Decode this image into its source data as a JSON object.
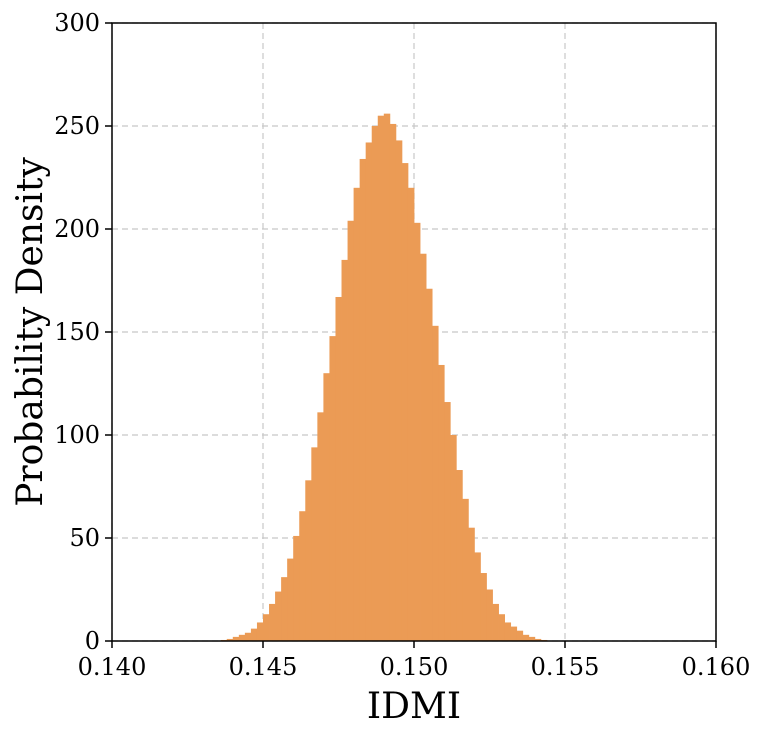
{
  "chart_data": {
    "type": "bar",
    "title": "",
    "xlabel": "IDMI",
    "ylabel": "Probability Density",
    "xlim": [
      0.14,
      0.16
    ],
    "ylim": [
      0,
      300
    ],
    "grid": true,
    "xticks": [
      "0.140",
      "0.145",
      "0.150",
      "0.155",
      "0.160"
    ],
    "yticks": [
      "0",
      "50",
      "100",
      "150",
      "200",
      "250",
      "300"
    ],
    "color": "#eb9b55",
    "bin_width": 0.0002,
    "bins": [
      {
        "x": 0.1437,
        "y": 0.5
      },
      {
        "x": 0.1439,
        "y": 1
      },
      {
        "x": 0.1441,
        "y": 2
      },
      {
        "x": 0.1443,
        "y": 3
      },
      {
        "x": 0.1445,
        "y": 4
      },
      {
        "x": 0.1447,
        "y": 6
      },
      {
        "x": 0.1449,
        "y": 9
      },
      {
        "x": 0.1451,
        "y": 13
      },
      {
        "x": 0.1453,
        "y": 18
      },
      {
        "x": 0.1455,
        "y": 24
      },
      {
        "x": 0.1457,
        "y": 31
      },
      {
        "x": 0.1459,
        "y": 40
      },
      {
        "x": 0.1461,
        "y": 51
      },
      {
        "x": 0.1463,
        "y": 63
      },
      {
        "x": 0.1465,
        "y": 78
      },
      {
        "x": 0.1467,
        "y": 94
      },
      {
        "x": 0.1469,
        "y": 111
      },
      {
        "x": 0.1471,
        "y": 130
      },
      {
        "x": 0.1473,
        "y": 148
      },
      {
        "x": 0.1475,
        "y": 167
      },
      {
        "x": 0.1477,
        "y": 185
      },
      {
        "x": 0.1479,
        "y": 204
      },
      {
        "x": 0.1481,
        "y": 220
      },
      {
        "x": 0.1483,
        "y": 234
      },
      {
        "x": 0.1485,
        "y": 242
      },
      {
        "x": 0.1487,
        "y": 250
      },
      {
        "x": 0.1489,
        "y": 255
      },
      {
        "x": 0.1491,
        "y": 256
      },
      {
        "x": 0.1493,
        "y": 251
      },
      {
        "x": 0.1495,
        "y": 243
      },
      {
        "x": 0.1497,
        "y": 232
      },
      {
        "x": 0.1499,
        "y": 220
      },
      {
        "x": 0.1501,
        "y": 203
      },
      {
        "x": 0.1503,
        "y": 188
      },
      {
        "x": 0.1505,
        "y": 171
      },
      {
        "x": 0.1507,
        "y": 153
      },
      {
        "x": 0.1509,
        "y": 134
      },
      {
        "x": 0.1511,
        "y": 116
      },
      {
        "x": 0.1513,
        "y": 100
      },
      {
        "x": 0.1515,
        "y": 83
      },
      {
        "x": 0.1517,
        "y": 69
      },
      {
        "x": 0.1519,
        "y": 55
      },
      {
        "x": 0.1521,
        "y": 43
      },
      {
        "x": 0.1523,
        "y": 33
      },
      {
        "x": 0.1525,
        "y": 25
      },
      {
        "x": 0.1527,
        "y": 18
      },
      {
        "x": 0.1529,
        "y": 13
      },
      {
        "x": 0.1531,
        "y": 9
      },
      {
        "x": 0.1533,
        "y": 7
      },
      {
        "x": 0.1535,
        "y": 5
      },
      {
        "x": 0.1537,
        "y": 3
      },
      {
        "x": 0.1539,
        "y": 2
      },
      {
        "x": 0.1541,
        "y": 1
      },
      {
        "x": 0.1543,
        "y": 0.5
      }
    ]
  }
}
